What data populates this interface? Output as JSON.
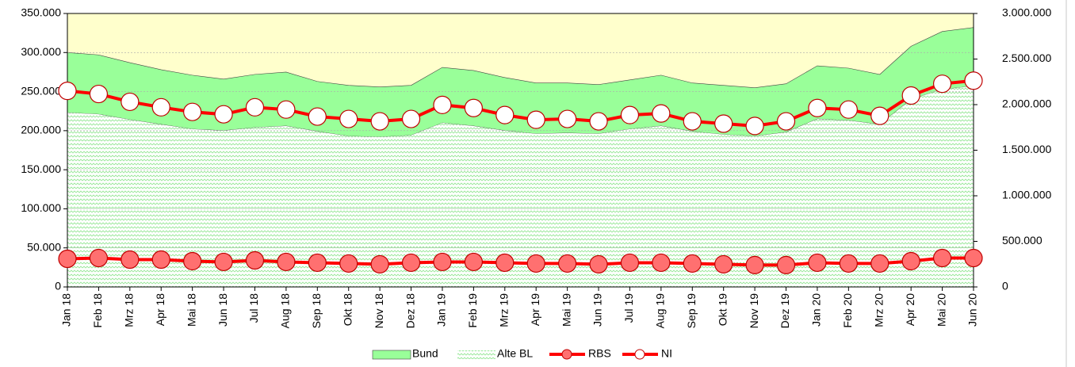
{
  "chart_data": {
    "type": "area_line",
    "categories": [
      "Jan 18",
      "Feb 18",
      "Mrz 18",
      "Apr 18",
      "Mai 18",
      "Jun 18",
      "Jul 18",
      "Aug 18",
      "Sep 18",
      "Okt 18",
      "Nov 18",
      "Dez 18",
      "Jan 19",
      "Feb 19",
      "Mrz 19",
      "Apr 19",
      "Mai 19",
      "Jun 19",
      "Jul 19",
      "Aug 19",
      "Sep 19",
      "Okt 19",
      "Nov 19",
      "Dez 19",
      "Jan 20",
      "Feb 20",
      "Mrz 20",
      "Apr 20",
      "Mai 20",
      "Jun 20"
    ],
    "series": [
      {
        "name": "Bund",
        "kind": "area",
        "stacked": true,
        "color": "#99ff99",
        "values": [
          77000,
          76000,
          73000,
          70000,
          69000,
          66000,
          68000,
          69000,
          64000,
          65000,
          64000,
          64000,
          71000,
          71000,
          68000,
          65000,
          64000,
          63000,
          63000,
          65000,
          62000,
          63000,
          62000,
          62000,
          68000,
          67000,
          64000,
          68000,
          74000,
          75000
        ]
      },
      {
        "name": "Alte BL",
        "kind": "area",
        "color": "#b8f0b8",
        "values": [
          223000,
          221000,
          214000,
          208000,
          202000,
          200000,
          204000,
          206000,
          199000,
          193000,
          192000,
          194000,
          210000,
          206000,
          200000,
          196000,
          197000,
          196000,
          202000,
          206000,
          199000,
          195000,
          193000,
          198000,
          215000,
          213000,
          208000,
          240000,
          253000,
          257000
        ]
      },
      {
        "name": "RBS",
        "kind": "line",
        "color": "#ff0000",
        "marker_color": "#ff7070",
        "values": [
          36000,
          37000,
          35000,
          35000,
          33000,
          32000,
          34000,
          32000,
          31000,
          30000,
          29000,
          31000,
          32000,
          32000,
          31000,
          30000,
          30000,
          29000,
          31000,
          31000,
          30000,
          29000,
          28000,
          28000,
          31000,
          30000,
          30000,
          33000,
          37000,
          37000
        ]
      },
      {
        "name": "NI",
        "kind": "line",
        "axis": "y2",
        "color": "#ff0000",
        "marker_color": "#ffffff",
        "values": [
          2151000,
          2117000,
          2031000,
          1971000,
          1920000,
          1894000,
          1971000,
          1946000,
          1869000,
          1843000,
          1817000,
          1843000,
          1997000,
          1963000,
          1886000,
          1834000,
          1843000,
          1817000,
          1886000,
          1903000,
          1817000,
          1791000,
          1766000,
          1817000,
          1963000,
          1946000,
          1877000,
          2100000,
          2229000,
          2263000
        ]
      }
    ],
    "ylim": [
      0,
      350000
    ],
    "yticks": [
      0,
      {
        "value": 50000,
        "label": "50.000"
      },
      {
        "value": 100000,
        "label": "100.000"
      },
      {
        "value": 150000,
        "label": "150.000"
      },
      {
        "value": 200000,
        "label": "200.000"
      },
      {
        "value": 250000,
        "label": "250.000"
      },
      {
        "value": 300000,
        "label": "300.000"
      },
      {
        "value": 350000,
        "label": "350.000"
      }
    ],
    "y2lim": [
      0,
      3000000
    ],
    "y2ticks": [
      0,
      {
        "value": 500000,
        "label": "500.000"
      },
      {
        "value": 1000000,
        "label": "1.000.000"
      },
      {
        "value": 1500000,
        "label": "1.500.000"
      },
      {
        "value": 2000000,
        "label": "2.000.000"
      },
      {
        "value": 2500000,
        "label": "2.500.000"
      },
      {
        "value": 3000000,
        "label": "3.000.000"
      }
    ],
    "grid": true,
    "plot_background": "#ffffcc",
    "legend": "bottom"
  }
}
